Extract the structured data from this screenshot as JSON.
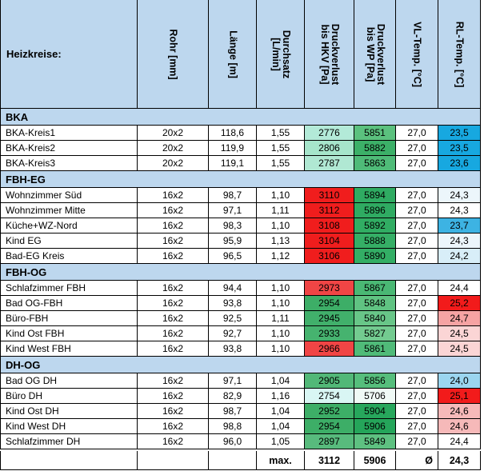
{
  "header": {
    "title": "Heizkreise:",
    "columns": [
      "Rohr [mm]",
      "Länge [m]",
      "Durchsatz [L/min]",
      "Druckverlust bis HKV [Pa]",
      "Druckverlust bis WP [Pa]",
      "VL-Temp. [°C]",
      "RL-Temp. [°C]"
    ]
  },
  "groups": [
    {
      "label": "BKA",
      "rows": [
        {
          "name": "BKA-Kreis1",
          "rohr": "20x2",
          "laenge": "118,6",
          "durchsatz": "1,55",
          "dv_hkv": "2776",
          "dv_wp": "5851",
          "vl": "27,0",
          "rl": "23,5",
          "c_hkv": "#b3ead8",
          "c_wp": "#5bc17e",
          "c_rl": "#17a8e0"
        },
        {
          "name": "BKA-Kreis2",
          "rohr": "20x2",
          "laenge": "119,9",
          "durchsatz": "1,55",
          "dv_hkv": "2806",
          "dv_wp": "5882",
          "vl": "27,0",
          "rl": "23,5",
          "c_hkv": "#a6e5cb",
          "c_wp": "#3cb068",
          "c_rl": "#17a8e0"
        },
        {
          "name": "BKA-Kreis3",
          "rohr": "20x2",
          "laenge": "119,1",
          "durchsatz": "1,55",
          "dv_hkv": "2787",
          "dv_wp": "5863",
          "vl": "27,0",
          "rl": "23,6",
          "c_hkv": "#b0e8d3",
          "c_wp": "#4fbb78",
          "c_rl": "#17a8e0"
        }
      ]
    },
    {
      "label": "FBH-EG",
      "rows": [
        {
          "name": "Wohnzimmer Süd",
          "rohr": "16x2",
          "laenge": "98,7",
          "durchsatz": "1,10",
          "dv_hkv": "3110",
          "dv_wp": "5894",
          "vl": "27,0",
          "rl": "24,3",
          "c_hkv": "#f01d1d",
          "c_wp": "#2fab62",
          "c_rl": "#ecf6fb"
        },
        {
          "name": "Wohnzimmer Mitte",
          "rohr": "16x2",
          "laenge": "97,1",
          "durchsatz": "1,11",
          "dv_hkv": "3112",
          "dv_wp": "5896",
          "vl": "27,0",
          "rl": "24,3",
          "c_hkv": "#f01d1d",
          "c_wp": "#2fab62",
          "c_rl": "#ffffff"
        },
        {
          "name": "Küche+WZ-Nord",
          "rohr": "16x2",
          "laenge": "98,3",
          "durchsatz": "1,10",
          "dv_hkv": "3108",
          "dv_wp": "5892",
          "vl": "27,0",
          "rl": "23,7",
          "c_hkv": "#f01d1d",
          "c_wp": "#31ad63",
          "c_rl": "#3db3e3"
        },
        {
          "name": "Kind EG",
          "rohr": "16x2",
          "laenge": "95,9",
          "durchsatz": "1,13",
          "dv_hkv": "3104",
          "dv_wp": "5888",
          "vl": "27,0",
          "rl": "24,3",
          "c_hkv": "#f01d1d",
          "c_wp": "#35af66",
          "c_rl": "#ecf6fb"
        },
        {
          "name": "Bad-EG Kreis",
          "rohr": "16x2",
          "laenge": "96,5",
          "durchsatz": "1,12",
          "dv_hkv": "3106",
          "dv_wp": "5890",
          "vl": "27,0",
          "rl": "24,2",
          "c_hkv": "#f01d1d",
          "c_wp": "#33ae65",
          "c_rl": "#d8eef8"
        }
      ]
    },
    {
      "label": "FBH-OG",
      "rows": [
        {
          "name": "Schlafzimmer FBH",
          "rohr": "16x2",
          "laenge": "94,4",
          "durchsatz": "1,10",
          "dv_hkv": "2973",
          "dv_wp": "5867",
          "vl": "27,0",
          "rl": "24,4",
          "c_hkv": "#f04545",
          "c_wp": "#4ab874",
          "c_rl": "#ffffff"
        },
        {
          "name": "Bad OG-FBH",
          "rohr": "16x2",
          "laenge": "93,8",
          "durchsatz": "1,10",
          "dv_hkv": "2954",
          "dv_wp": "5848",
          "vl": "27,0",
          "rl": "25,2",
          "c_hkv": "#3dae67",
          "c_wp": "#60c382",
          "c_rl": "#f21b1b"
        },
        {
          "name": "Büro-FBH",
          "rohr": "16x2",
          "laenge": "92,5",
          "durchsatz": "1,11",
          "dv_hkv": "2945",
          "dv_wp": "5840",
          "vl": "27,0",
          "rl": "24,7",
          "c_hkv": "#41b06b",
          "c_wp": "#68c688",
          "c_rl": "#f6a3a3"
        },
        {
          "name": "Kind Ost FBH",
          "rohr": "16x2",
          "laenge": "92,7",
          "durchsatz": "1,10",
          "dv_hkv": "2933",
          "dv_wp": "5827",
          "vl": "27,0",
          "rl": "24,5",
          "c_hkv": "#46b36f",
          "c_wp": "#73cb90",
          "c_rl": "#fbd5d5"
        },
        {
          "name": "Kind West FBH",
          "rohr": "16x2",
          "laenge": "93,8",
          "durchsatz": "1,10",
          "dv_hkv": "2966",
          "dv_wp": "5861",
          "vl": "27,0",
          "rl": "24,5",
          "c_hkv": "#f04545",
          "c_wp": "#50bb79",
          "c_rl": "#fbd5d5"
        }
      ]
    },
    {
      "label": "DH-OG",
      "rows": [
        {
          "name": "Bad OG DH",
          "rohr": "16x2",
          "laenge": "97,1",
          "durchsatz": "1,04",
          "dv_hkv": "2905",
          "dv_wp": "5856",
          "vl": "27,0",
          "rl": "24,0",
          "c_hkv": "#52b878",
          "c_wp": "#56be7c",
          "c_rl": "#9bd5ef"
        },
        {
          "name": "Büro DH",
          "rohr": "16x2",
          "laenge": "82,9",
          "durchsatz": "1,16",
          "dv_hkv": "2754",
          "dv_wp": "5706",
          "vl": "27,0",
          "rl": "25,1",
          "c_hkv": "#d9f6f4",
          "c_wp": "#f0faf6",
          "c_rl": "#f21b1b"
        },
        {
          "name": "Kind Ost DH",
          "rohr": "16x2",
          "laenge": "98,7",
          "durchsatz": "1,04",
          "dv_hkv": "2952",
          "dv_wp": "5904",
          "vl": "27,0",
          "rl": "24,6",
          "c_hkv": "#3dae67",
          "c_wp": "#27a75c",
          "c_rl": "#f6b9b9"
        },
        {
          "name": "Kind West DH",
          "rohr": "16x2",
          "laenge": "98,8",
          "durchsatz": "1,04",
          "dv_hkv": "2954",
          "dv_wp": "5906",
          "vl": "27,0",
          "rl": "24,6",
          "c_hkv": "#3dae67",
          "c_wp": "#25a55a",
          "c_rl": "#f6b9b9"
        },
        {
          "name": "Schlafzimmer DH",
          "rohr": "16x2",
          "laenge": "96,0",
          "durchsatz": "1,05",
          "dv_hkv": "2897",
          "dv_wp": "5849",
          "vl": "27,0",
          "rl": "24,4",
          "c_hkv": "#58bb7d",
          "c_wp": "#5ec181",
          "c_rl": "#ffffff"
        }
      ]
    }
  ],
  "footer": {
    "max_label": "max.",
    "max_hkv": "3112",
    "max_wp": "5906",
    "avg_symbol": "Ø",
    "avg_rl": "24,3"
  },
  "colors": {
    "header_bg": "#bdd7ee",
    "group_bg": "#bdd7ee",
    "grid": "#000000"
  }
}
